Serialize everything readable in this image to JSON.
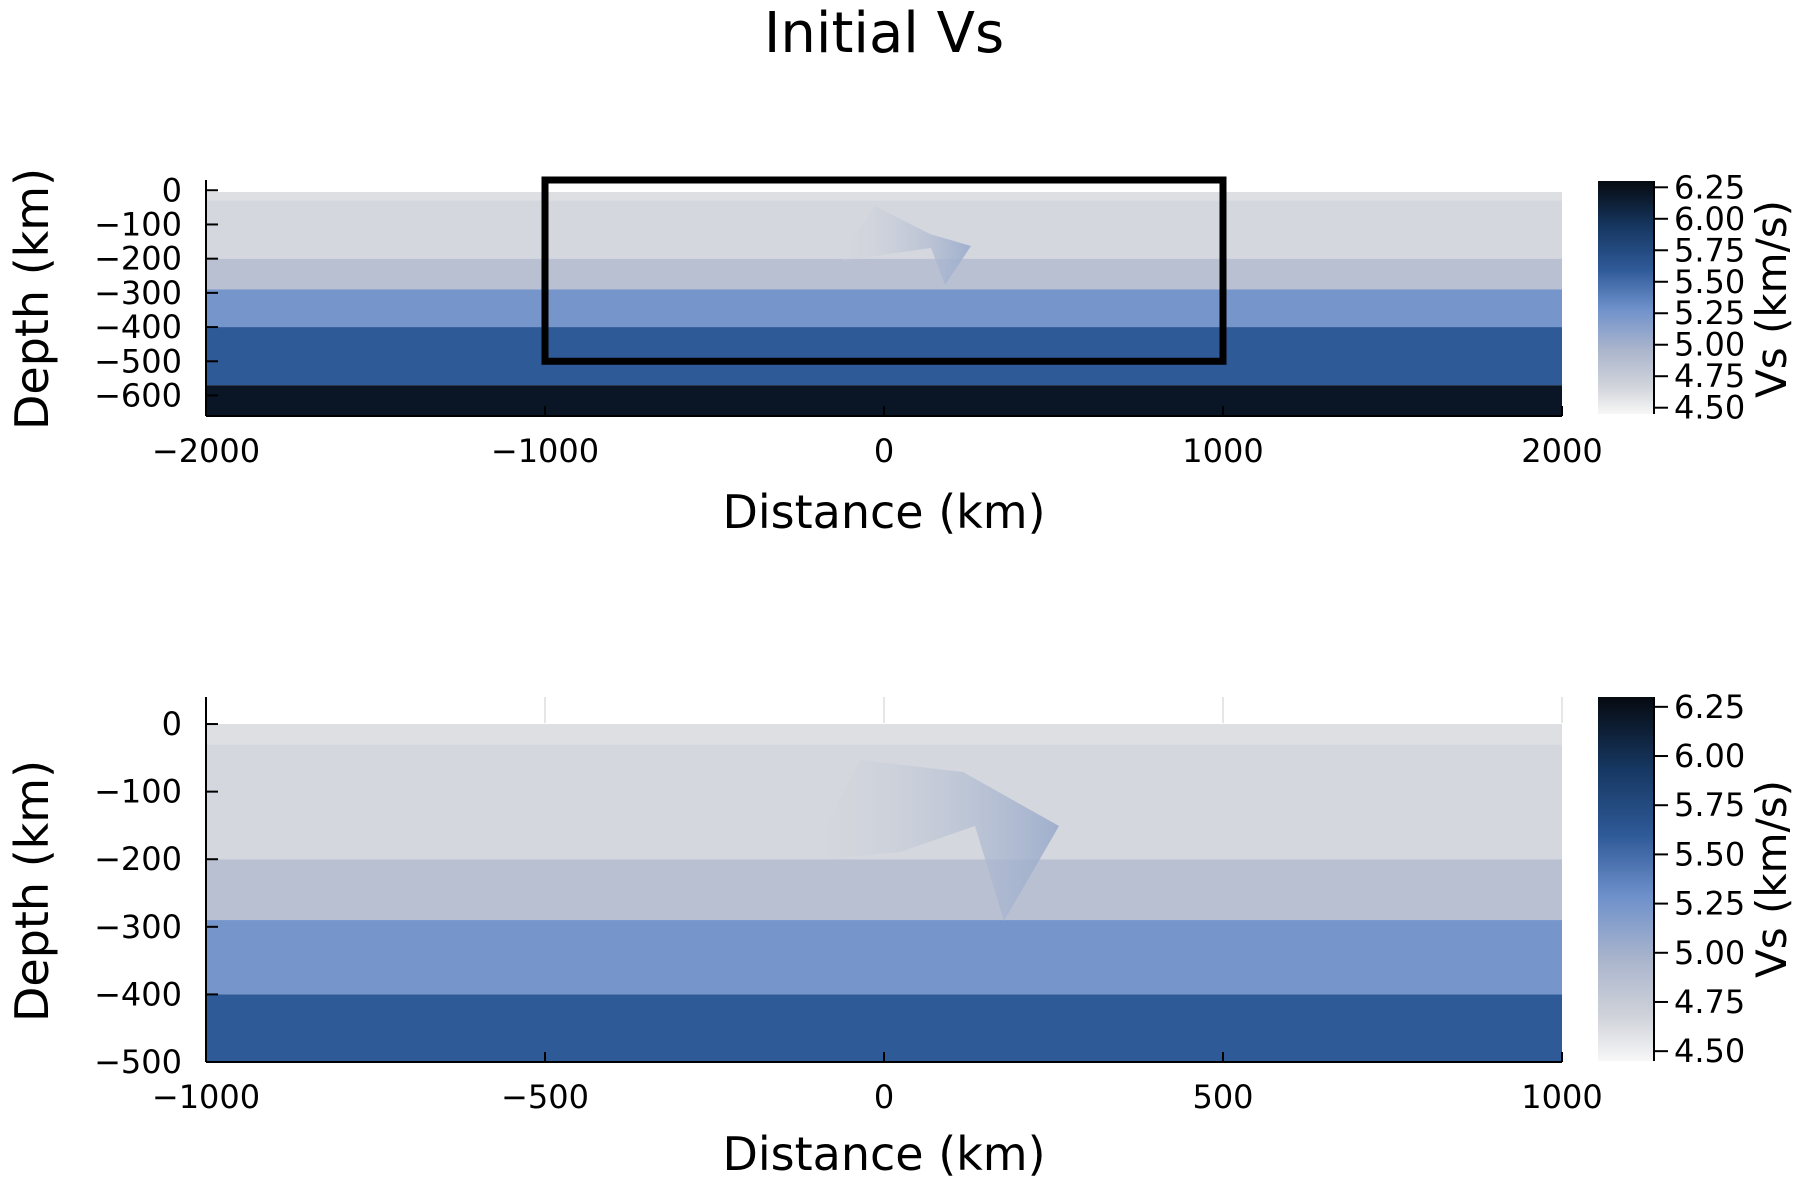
{
  "title": "Initial Vs",
  "chart_data": [
    {
      "type": "heatmap",
      "xlabel": "Distance (km)",
      "ylabel": "Depth (km)",
      "xlim": [
        -2000,
        2000
      ],
      "ylim": [
        -660,
        30
      ],
      "xticks": [
        -2000,
        -1000,
        0,
        1000,
        2000
      ],
      "xtick_labels": [
        "−2000",
        "−1000",
        "0",
        "1000",
        "2000"
      ],
      "yticks": [
        0,
        -100,
        -200,
        -300,
        -400,
        -500,
        -600
      ],
      "ytick_labels": [
        "0",
        "−100",
        "−200",
        "−300",
        "−400",
        "−500",
        "−600"
      ],
      "colorbar": {
        "label": "Vs (km/s)",
        "range": [
          4.45,
          6.3
        ],
        "ticks": [
          6.25,
          6.0,
          5.75,
          5.5,
          5.25,
          5.0,
          4.75,
          4.5
        ],
        "tick_labels": [
          "6.25",
          "6.00",
          "5.75",
          "5.50",
          "5.25",
          "5.00",
          "4.75",
          "4.50"
        ]
      },
      "layers": [
        {
          "top": 0,
          "bottom": -30,
          "vs": 4.6
        },
        {
          "top": -30,
          "bottom": -200,
          "vs": 4.65
        },
        {
          "top": -200,
          "bottom": -290,
          "vs": 4.85
        },
        {
          "top": -290,
          "bottom": -400,
          "vs": 5.25
        },
        {
          "top": -400,
          "bottom": -570,
          "vs": 5.6
        },
        {
          "top": -570,
          "bottom": -660,
          "vs": 6.2
        }
      ],
      "box": {
        "x": [
          -1000,
          1000
        ],
        "y": [
          -500,
          30
        ]
      }
    },
    {
      "type": "heatmap",
      "xlabel": "Distance (km)",
      "ylabel": "Depth (km)",
      "xlim": [
        -1000,
        1000
      ],
      "ylim": [
        -500,
        40
      ],
      "xticks": [
        -1000,
        -500,
        0,
        500,
        1000
      ],
      "xtick_labels": [
        "−1000",
        "−500",
        "0",
        "500",
        "1000"
      ],
      "yticks": [
        0,
        -100,
        -200,
        -300,
        -400,
        -500
      ],
      "ytick_labels": [
        "0",
        "−100",
        "−200",
        "−300",
        "−400",
        "−500"
      ],
      "colorbar": {
        "label": "Vs (km/s)",
        "range": [
          4.45,
          6.3
        ],
        "ticks": [
          6.25,
          6.0,
          5.75,
          5.5,
          5.25,
          5.0,
          4.75,
          4.5
        ],
        "tick_labels": [
          "6.25",
          "6.00",
          "5.75",
          "5.50",
          "5.25",
          "5.00",
          "4.75",
          "4.50"
        ]
      },
      "layers": [
        {
          "top": 0,
          "bottom": -30,
          "vs": 4.6
        },
        {
          "top": -30,
          "bottom": -200,
          "vs": 4.65
        },
        {
          "top": -200,
          "bottom": -290,
          "vs": 4.85
        },
        {
          "top": -290,
          "bottom": -400,
          "vs": 5.25
        },
        {
          "top": -400,
          "bottom": -500,
          "vs": 5.6
        }
      ]
    }
  ]
}
